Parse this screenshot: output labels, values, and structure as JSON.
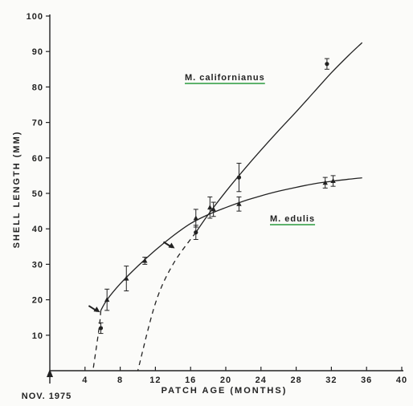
{
  "chart_data": {
    "type": "line",
    "title": "",
    "xlabel": "PATCH AGE (MONTHS)",
    "ylabel": "SHELL LENGTH (MM)",
    "xlim": [
      0,
      40
    ],
    "ylim": [
      0,
      100
    ],
    "x_ticks": [
      4,
      8,
      12,
      16,
      20,
      24,
      28,
      32,
      36,
      40
    ],
    "y_ticks": [
      10,
      20,
      30,
      40,
      50,
      60,
      70,
      80,
      90,
      100
    ],
    "x_origin_label": "NOV. 1975",
    "grid": false,
    "series": [
      {
        "name": "M. edulis",
        "marker": "triangle",
        "points": [
          {
            "x": 6.5,
            "y": 20,
            "err": 3
          },
          {
            "x": 8.7,
            "y": 26,
            "err": 3.5
          },
          {
            "x": 10.8,
            "y": 31,
            "err": 1
          },
          {
            "x": 16.6,
            "y": 43,
            "err": 2.5
          },
          {
            "x": 18.2,
            "y": 46,
            "err": 3
          },
          {
            "x": 18.6,
            "y": 45.5,
            "err": 2
          },
          {
            "x": 21.5,
            "y": 47,
            "err": 2
          },
          {
            "x": 31.3,
            "y": 53,
            "err": 1.5
          },
          {
            "x": 32.2,
            "y": 53.5,
            "err": 1.5
          }
        ],
        "curve": [
          [
            5.8,
            17
          ],
          [
            6.5,
            20
          ],
          [
            8,
            24.5
          ],
          [
            10,
            29.5
          ],
          [
            12,
            34
          ],
          [
            14,
            38
          ],
          [
            16,
            41.5
          ],
          [
            18,
            44
          ],
          [
            20,
            46
          ],
          [
            22,
            47.8
          ],
          [
            24,
            49.3
          ],
          [
            26,
            50.6
          ],
          [
            28,
            51.7
          ],
          [
            30,
            52.7
          ],
          [
            32,
            53.4
          ],
          [
            34,
            54
          ],
          [
            35.5,
            54.4
          ]
        ],
        "extrapolation": [
          [
            5.8,
            17
          ],
          [
            5.6,
            12
          ],
          [
            4.9,
            0
          ]
        ]
      },
      {
        "name": "M. californianus",
        "marker": "dot",
        "points": [
          {
            "x": 5.8,
            "y": 12,
            "err": 1.5
          },
          {
            "x": 16.6,
            "y": 39,
            "err": 2
          },
          {
            "x": 21.5,
            "y": 54.5,
            "err": 4
          },
          {
            "x": 31.5,
            "y": 86.5,
            "err": 1.5
          }
        ],
        "curve": [
          [
            16.6,
            39
          ],
          [
            18,
            44
          ],
          [
            20,
            50.5
          ],
          [
            22,
            56.5
          ],
          [
            24,
            62.2
          ],
          [
            26,
            67.7
          ],
          [
            28,
            73
          ],
          [
            30,
            78.5
          ],
          [
            32,
            84
          ],
          [
            34,
            89
          ],
          [
            35.5,
            92.5
          ]
        ],
        "extrapolation": [
          [
            16.6,
            39
          ],
          [
            14,
            30
          ],
          [
            12,
            19
          ],
          [
            10,
            0
          ]
        ]
      }
    ],
    "annotations": {
      "arrows": [
        {
          "series": "M. edulis",
          "x": 5.7,
          "y": 16.5
        },
        {
          "series": "M. californianus",
          "x": 14.2,
          "y": 34.5
        }
      ]
    },
    "colors": {
      "ink": "#222222",
      "californianus_underline": "#2a9a3e",
      "edulis_underline": "#2a9a3e",
      "background": "#fbfbf9"
    }
  }
}
